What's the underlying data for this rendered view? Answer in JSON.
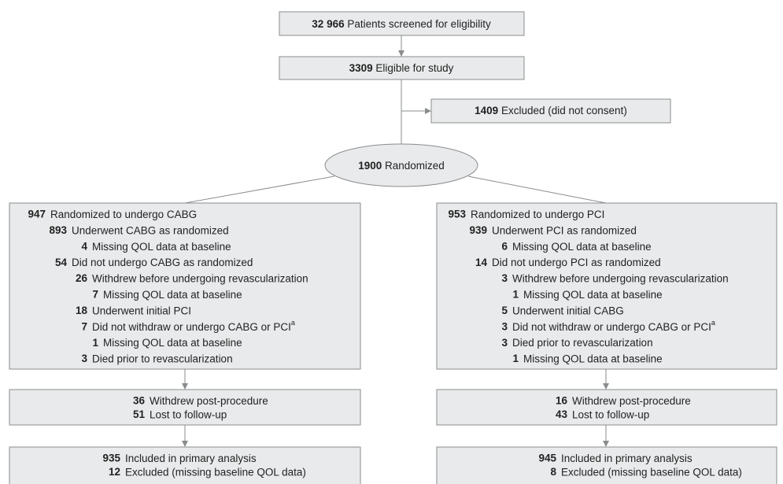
{
  "screened": {
    "count": "32 966",
    "label": "Patients screened for eligibility"
  },
  "eligible": {
    "count": "3309",
    "label": "Eligible for study"
  },
  "excluded": {
    "count": "1409",
    "label": "Excluded (did not consent)"
  },
  "randomized": {
    "count": "1900",
    "label": "Randomized"
  },
  "arms": [
    {
      "lines": [
        {
          "count": "947",
          "label": "Randomized to undergo CABG"
        },
        {
          "count": "893",
          "label": "Underwent CABG as randomized"
        },
        {
          "count": "4",
          "label": "Missing QOL data at baseline"
        },
        {
          "count": "54",
          "label": "Did not undergo CABG as randomized"
        },
        {
          "count": "26",
          "label": "Withdrew before undergoing revascularization"
        },
        {
          "count": "7",
          "label": "Missing QOL data at baseline"
        },
        {
          "count": "18",
          "label": "Underwent initial PCI"
        },
        {
          "count": "7",
          "label": "Did not withdraw or undergo CABG or PCI",
          "note": "a"
        },
        {
          "count": "1",
          "label": "Missing QOL data at baseline"
        },
        {
          "count": "3",
          "label": "Died prior to revascularization"
        }
      ],
      "followup": [
        {
          "count": "36",
          "label": "Withdrew post-procedure"
        },
        {
          "count": "51",
          "label": "Lost to follow-up"
        }
      ],
      "analysis": [
        {
          "count": "935",
          "label": "Included in primary analysis"
        },
        {
          "count": "12",
          "label": "Excluded (missing baseline QOL data)"
        }
      ]
    },
    {
      "lines": [
        {
          "count": "953",
          "label": "Randomized to undergo PCI"
        },
        {
          "count": "939",
          "label": "Underwent PCI as randomized"
        },
        {
          "count": "6",
          "label": "Missing QOL data at baseline"
        },
        {
          "count": "14",
          "label": "Did not undergo PCI as randomized"
        },
        {
          "count": "3",
          "label": "Withdrew before undergoing revascularization"
        },
        {
          "count": "1",
          "label": "Missing QOL data at baseline"
        },
        {
          "count": "5",
          "label": "Underwent initial CABG"
        },
        {
          "count": "3",
          "label": "Did not withdraw or undergo CABG or PCI",
          "note": "a"
        },
        {
          "count": "3",
          "label": "Died prior to revascularization"
        },
        {
          "count": "1",
          "label": "Missing QOL data at baseline"
        }
      ],
      "followup": [
        {
          "count": "16",
          "label": "Withdrew post-procedure"
        },
        {
          "count": "43",
          "label": "Lost to follow-up"
        }
      ],
      "analysis": [
        {
          "count": "945",
          "label": "Included in primary analysis"
        },
        {
          "count": "8",
          "label": "Excluded (missing baseline QOL data)"
        }
      ]
    }
  ]
}
